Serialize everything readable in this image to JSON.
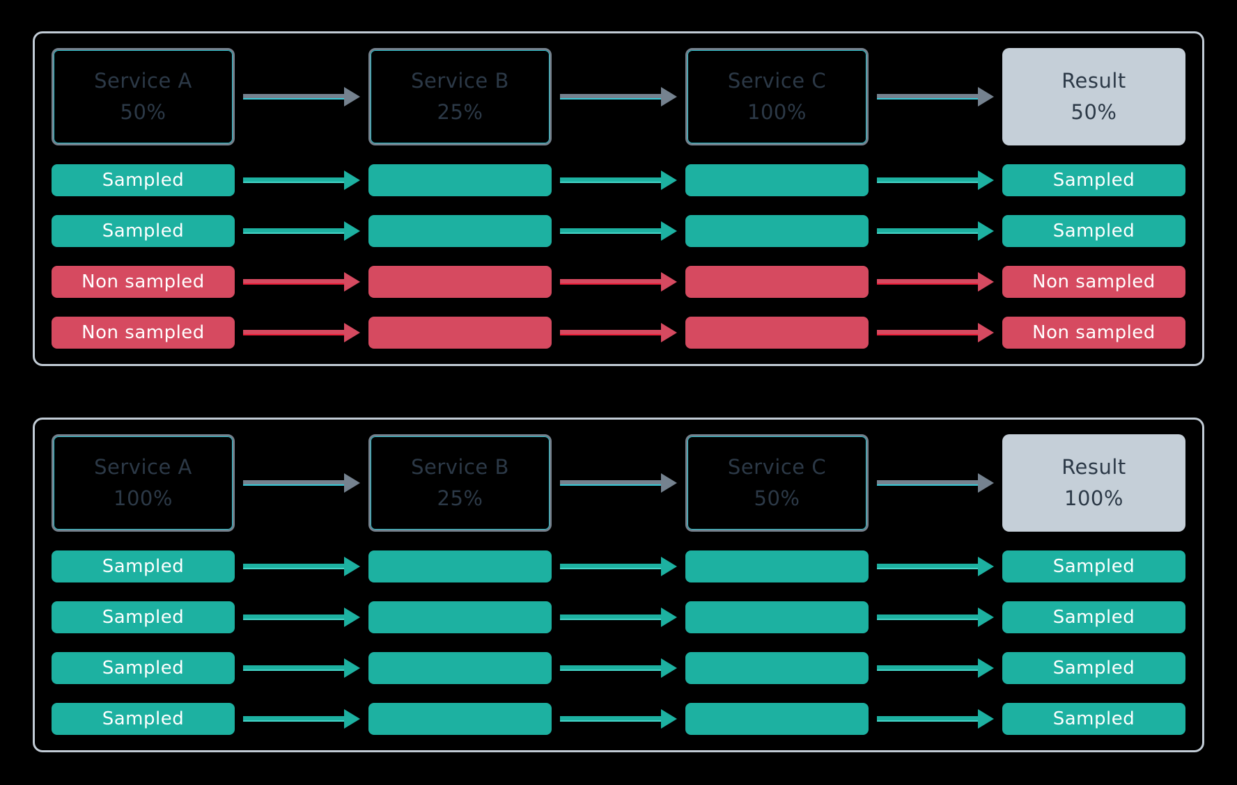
{
  "colors": {
    "background": "#000000",
    "panel_border": "#c2ccd6",
    "service_box_border": "#76828e",
    "service_box_inner_line": "#2fc3cf",
    "service_text": "#2c3947",
    "result_box_bg": "#c5cfd8",
    "result_text": "#2c3947",
    "sampled_teal": "#1db1a1",
    "teal_arrow_accent": "#45d6c9",
    "gray_arrow": "#75828f",
    "gray_arrow_accent": "#38c9d6",
    "non_sampled_red": "#d64a60",
    "red_arrow_accent": "#ee1f3a",
    "bar_text": "#ffffff"
  },
  "panels": [
    {
      "id": "scenario-result-50",
      "services": [
        {
          "name": "Service A",
          "rate": "50%"
        },
        {
          "name": "Service B",
          "rate": "25%"
        },
        {
          "name": "Service C",
          "rate": "100%"
        }
      ],
      "result": {
        "name": "Result",
        "rate": "50%"
      },
      "traces": [
        {
          "state": "sampled",
          "label": "Sampled"
        },
        {
          "state": "sampled",
          "label": "Sampled"
        },
        {
          "state": "non_sampled",
          "label": "Non sampled"
        },
        {
          "state": "non_sampled",
          "label": "Non sampled"
        }
      ]
    },
    {
      "id": "scenario-result-100",
      "services": [
        {
          "name": "Service A",
          "rate": "100%"
        },
        {
          "name": "Service B",
          "rate": "25%"
        },
        {
          "name": "Service C",
          "rate": "50%"
        }
      ],
      "result": {
        "name": "Result",
        "rate": "100%"
      },
      "traces": [
        {
          "state": "sampled",
          "label": "Sampled"
        },
        {
          "state": "sampled",
          "label": "Sampled"
        },
        {
          "state": "sampled",
          "label": "Sampled"
        },
        {
          "state": "sampled",
          "label": "Sampled"
        }
      ]
    }
  ]
}
